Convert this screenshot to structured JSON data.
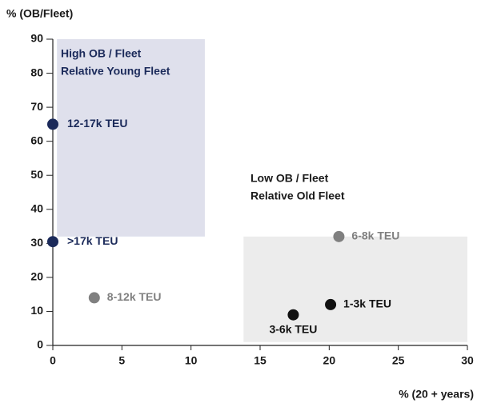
{
  "chart_data": {
    "type": "scatter",
    "y_label": "% (OB/Fleet)",
    "x_label": "% (20 + years)",
    "xlim": [
      0,
      30
    ],
    "xticks": [
      0,
      5,
      10,
      15,
      20,
      25,
      30
    ],
    "ylim": [
      0,
      90
    ],
    "yticks": [
      0,
      10,
      20,
      30,
      40,
      50,
      60,
      70,
      80,
      90
    ],
    "series": [
      {
        "name": "12-17k TEU",
        "color": "#1b2a5a",
        "x": [
          0
        ],
        "values": [
          65
        ]
      },
      {
        "name": ">17k TEU",
        "color": "#1b2a5a",
        "x": [
          0
        ],
        "values": [
          30.5
        ]
      },
      {
        "name": "8-12k TEU",
        "color": "#808080",
        "x": [
          3
        ],
        "values": [
          14
        ]
      },
      {
        "name": "6-8k TEU",
        "color": "#808080",
        "x": [
          20.7
        ],
        "values": [
          32
        ]
      },
      {
        "name": "1-3k TEU",
        "color": "#111111",
        "x": [
          20.1
        ],
        "values": [
          12
        ]
      },
      {
        "name": "3-6k TEU",
        "color": "#111111",
        "x": [
          17.4
        ],
        "values": [
          9
        ]
      }
    ],
    "regions": [
      {
        "label": [
          "High OB / Fleet",
          "Relative Young Fleet"
        ],
        "color": "#dfe0ec",
        "xrange": [
          0.3,
          11
        ],
        "yrange": [
          32,
          90
        ]
      },
      {
        "label": [
          "Low OB / Fleet",
          "Relative Old Fleet"
        ],
        "color": "#ececec",
        "xrange": [
          13.8,
          30
        ],
        "yrange": [
          1,
          32
        ]
      }
    ]
  }
}
